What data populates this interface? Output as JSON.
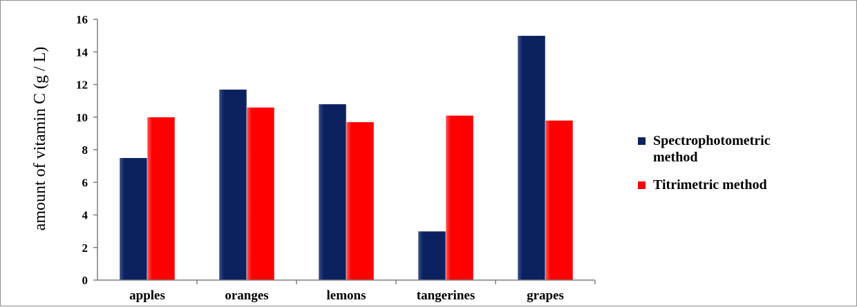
{
  "chart_data": {
    "type": "bar",
    "title": "",
    "xlabel": "",
    "ylabel": "amount of vitamin C  (g / L)",
    "categories": [
      "apples",
      "oranges",
      "lemons",
      "tangerines",
      "grapes"
    ],
    "series": [
      {
        "name": "Spectrophotometric method",
        "values": [
          7.5,
          11.7,
          10.8,
          3.0,
          15.0
        ]
      },
      {
        "name": "Titrimetric method",
        "values": [
          10.0,
          10.6,
          9.7,
          10.1,
          9.8
        ]
      }
    ],
    "ylim": [
      0,
      16
    ],
    "yticks": [
      "0",
      "2",
      "4",
      "6",
      "8",
      "10",
      "12",
      "14",
      "16"
    ],
    "grid": false,
    "legend_position": "right",
    "legend": [
      {
        "lines": [
          "Spectrophotometric",
          "method"
        ]
      },
      {
        "lines": [
          "Titrimetric method"
        ]
      }
    ],
    "colors": {
      "series": [
        "#0c2260",
        "#ff0000"
      ],
      "axis": "#7f7f7f"
    }
  }
}
